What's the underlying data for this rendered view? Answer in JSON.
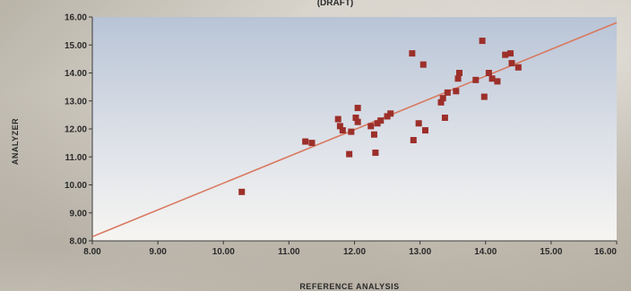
{
  "chart_data": {
    "type": "scatter",
    "title": "(DRAFT)",
    "xlabel": "REFERENCE ANALYSIS",
    "ylabel": "ANALYZER",
    "xlim": [
      8.0,
      16.0
    ],
    "ylim": [
      8.0,
      16.0
    ],
    "x_ticks": [
      "8.00",
      "9.00",
      "10.00",
      "11.00",
      "12.00",
      "13.00",
      "14.00",
      "15.00",
      "16.00"
    ],
    "y_ticks": [
      "8.00",
      "9.00",
      "10.00",
      "11.00",
      "12.00",
      "13.00",
      "14.00",
      "15.00",
      "16.00"
    ],
    "points": [
      [
        10.28,
        9.75
      ],
      [
        11.25,
        11.55
      ],
      [
        11.35,
        11.5
      ],
      [
        11.75,
        12.35
      ],
      [
        11.78,
        12.1
      ],
      [
        11.82,
        11.95
      ],
      [
        11.92,
        11.1
      ],
      [
        11.95,
        11.9
      ],
      [
        12.02,
        12.4
      ],
      [
        12.05,
        12.75
      ],
      [
        12.05,
        12.25
      ],
      [
        12.25,
        12.1
      ],
      [
        12.3,
        11.8
      ],
      [
        12.32,
        11.15
      ],
      [
        12.35,
        12.2
      ],
      [
        12.4,
        12.3
      ],
      [
        12.5,
        12.45
      ],
      [
        12.55,
        12.55
      ],
      [
        12.88,
        14.7
      ],
      [
        12.9,
        11.6
      ],
      [
        12.98,
        12.2
      ],
      [
        13.05,
        14.3
      ],
      [
        13.08,
        11.95
      ],
      [
        13.32,
        12.95
      ],
      [
        13.35,
        13.1
      ],
      [
        13.38,
        12.4
      ],
      [
        13.42,
        13.3
      ],
      [
        13.55,
        13.35
      ],
      [
        13.58,
        13.8
      ],
      [
        13.6,
        14.0
      ],
      [
        13.85,
        13.75
      ],
      [
        13.95,
        15.15
      ],
      [
        13.98,
        13.15
      ],
      [
        14.05,
        14.0
      ],
      [
        14.1,
        13.8
      ],
      [
        14.18,
        13.7
      ],
      [
        14.3,
        14.65
      ],
      [
        14.38,
        14.7
      ],
      [
        14.4,
        14.35
      ],
      [
        14.5,
        14.2
      ]
    ],
    "trendline": {
      "x": [
        8.0,
        16.0
      ],
      "y": [
        8.15,
        15.8
      ]
    },
    "grid": false,
    "colors": {
      "marker": "#9c2f2a",
      "trendline": "#d9795f",
      "plot_top": "#b8c4d6",
      "plot_bottom": "#f6f5f2"
    }
  }
}
